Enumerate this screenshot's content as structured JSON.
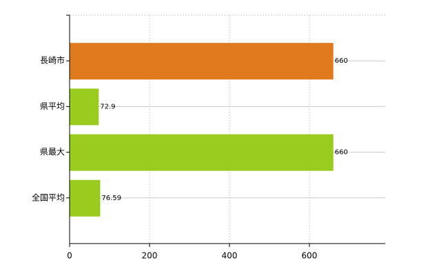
{
  "chart_data": {
    "type": "hbar",
    "categories": [
      "長崎市",
      "県平均",
      "県最大",
      "全国平均"
    ],
    "values": [
      660,
      72.9,
      660,
      76.59
    ],
    "colors": [
      "#e07a1f",
      "#9acb1f",
      "#9acb1f",
      "#9acb1f"
    ],
    "xlim": [
      0,
      790
    ],
    "xticks": [
      0,
      200,
      400,
      600
    ],
    "grid": true
  }
}
